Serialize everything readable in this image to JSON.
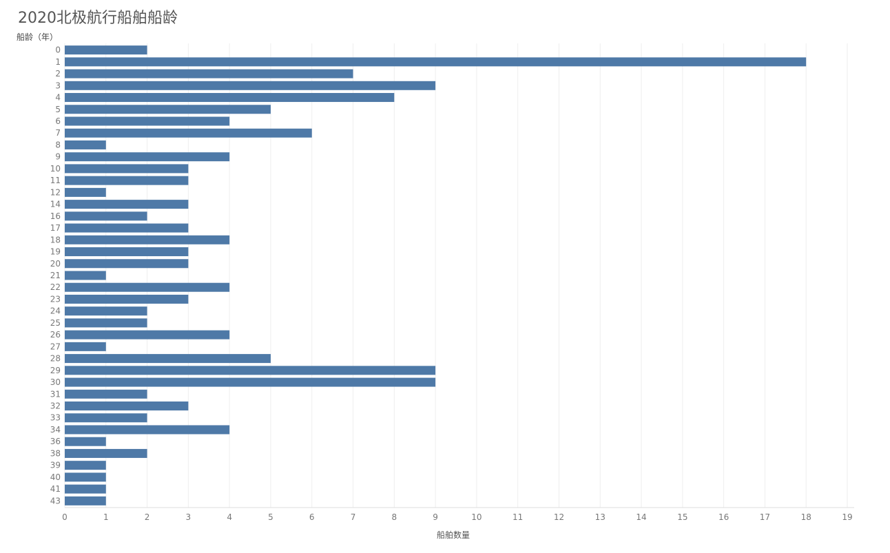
{
  "chart_data": {
    "type": "bar",
    "orientation": "horizontal",
    "title": "2020北极航行船舶船龄",
    "ylabel": "船龄（年）",
    "xlabel": "船舶数量",
    "xlim": [
      0,
      19
    ],
    "x_ticks": [
      0,
      1,
      2,
      3,
      4,
      5,
      6,
      7,
      8,
      9,
      10,
      11,
      12,
      13,
      14,
      15,
      16,
      17,
      18,
      19
    ],
    "grid": "vertical",
    "color": "#4e79a7",
    "categories": [
      "0",
      "1",
      "2",
      "3",
      "4",
      "5",
      "6",
      "7",
      "8",
      "9",
      "10",
      "11",
      "12",
      "14",
      "16",
      "17",
      "18",
      "19",
      "20",
      "21",
      "22",
      "23",
      "24",
      "25",
      "26",
      "27",
      "28",
      "29",
      "30",
      "31",
      "32",
      "33",
      "34",
      "36",
      "38",
      "39",
      "40",
      "41",
      "43"
    ],
    "values": [
      2,
      18,
      7,
      9,
      8,
      5,
      4,
      6,
      1,
      4,
      3,
      3,
      1,
      3,
      2,
      3,
      4,
      3,
      3,
      1,
      4,
      3,
      2,
      2,
      4,
      1,
      5,
      9,
      9,
      2,
      3,
      2,
      4,
      1,
      2,
      1,
      1,
      1,
      1
    ]
  }
}
